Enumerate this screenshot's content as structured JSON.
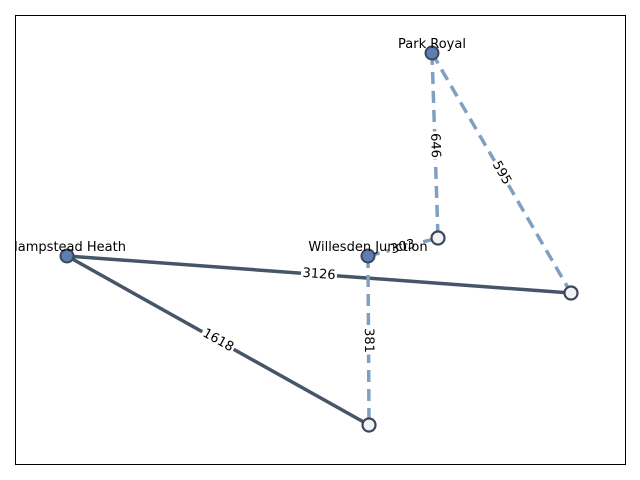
{
  "diagram": {
    "type": "network",
    "nodes": [
      {
        "id": "park-royal",
        "label": "Park Royal",
        "kind": "major"
      },
      {
        "id": "hampstead-heath",
        "label": "Hampstead Heath",
        "kind": "major"
      },
      {
        "id": "willesden-junction",
        "label": "Willesden Junction",
        "kind": "major"
      },
      {
        "id": "n1",
        "label": "",
        "kind": "minor"
      },
      {
        "id": "n2",
        "label": "",
        "kind": "minor"
      },
      {
        "id": "n3",
        "label": "",
        "kind": "minor"
      }
    ],
    "edges": [
      {
        "from": "hampstead-heath",
        "to": "n2",
        "label": "3126",
        "style": "solid"
      },
      {
        "from": "hampstead-heath",
        "to": "n3",
        "label": "1618",
        "style": "solid"
      },
      {
        "from": "park-royal",
        "to": "n1",
        "label": "646",
        "style": "dashed"
      },
      {
        "from": "park-royal",
        "to": "n2",
        "label": "595",
        "style": "dashed"
      },
      {
        "from": "willesden-junction",
        "to": "n1",
        "label": "303",
        "style": "dashed"
      },
      {
        "from": "willesden-junction",
        "to": "n3",
        "label": "381",
        "style": "dashed"
      }
    ],
    "colors": {
      "solid_edge": "#475569",
      "dashed_edge": "#7fa0c2",
      "major_node_fill": "#5b7fb3",
      "minor_node_fill": "#f0f2f6",
      "node_outline": "#3c4658"
    }
  }
}
